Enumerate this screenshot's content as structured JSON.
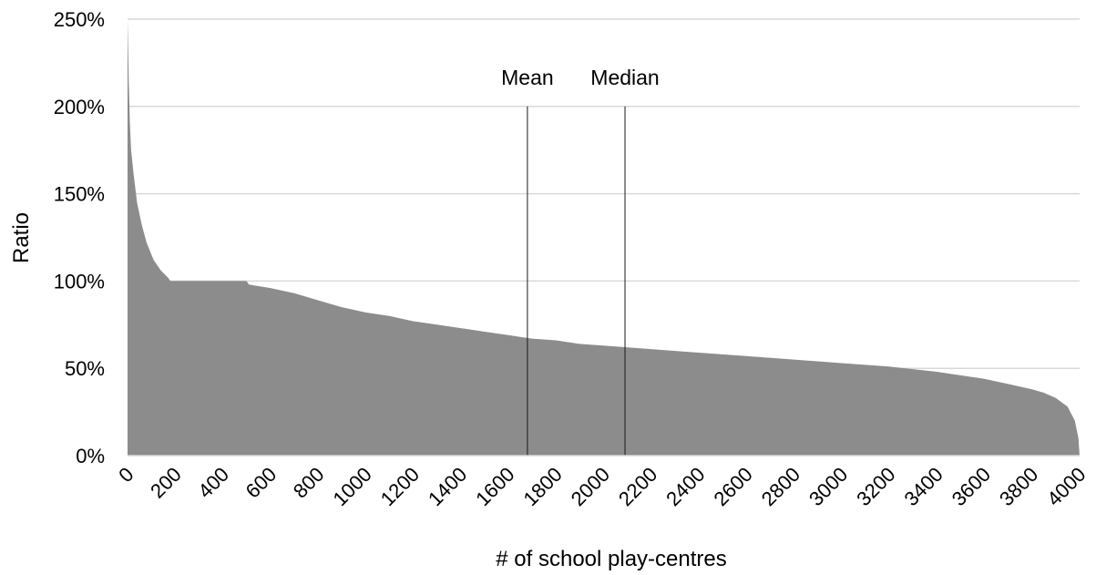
{
  "chart_data": {
    "type": "area",
    "xlabel": "# of school play-centres",
    "ylabel": "Ratio",
    "xlim": [
      0,
      4000
    ],
    "ylim": [
      0,
      250
    ],
    "x_ticks": [
      "0",
      "200",
      "400",
      "600",
      "800",
      "1000",
      "1200",
      "1400",
      "1600",
      "1800",
      "2000",
      "2200",
      "2400",
      "2600",
      "2800",
      "3000",
      "3200",
      "3400",
      "3600",
      "3800",
      "4000"
    ],
    "y_ticks": [
      "0%",
      "50%",
      "100%",
      "150%",
      "200%",
      "250%"
    ],
    "grid": "horizontal",
    "fill_color": "#8c8c8c",
    "series": [
      {
        "x": [
          0,
          5,
          10,
          15,
          25,
          40,
          60,
          80,
          110,
          140,
          170,
          180,
          200,
          300,
          400,
          500,
          510,
          600,
          700,
          800,
          900,
          1000,
          1100,
          1200,
          1300,
          1400,
          1500,
          1600,
          1650,
          1700,
          1800,
          1900,
          2000,
          2200,
          2400,
          2600,
          2800,
          3000,
          3200,
          3400,
          3600,
          3700,
          3800,
          3850,
          3900,
          3950,
          3980,
          3995,
          4000
        ],
        "y": [
          250,
          215,
          190,
          175,
          162,
          145,
          132,
          122,
          112,
          106,
          102,
          100,
          100,
          100,
          100,
          100,
          98,
          96,
          93,
          89,
          85,
          82,
          80,
          77,
          75,
          73,
          71,
          69,
          68,
          67,
          66,
          64,
          63,
          61,
          59,
          57,
          55,
          53,
          51,
          48,
          44,
          41,
          38,
          36,
          33,
          28,
          20,
          10,
          0
        ]
      }
    ],
    "annotations": [
      {
        "label": "Mean",
        "x": 1680
      },
      {
        "label": "Median",
        "x": 2090
      }
    ]
  }
}
